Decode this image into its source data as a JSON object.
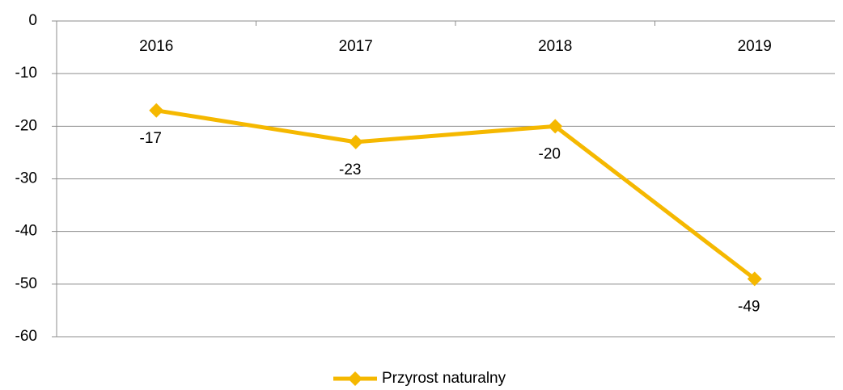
{
  "chart_data": {
    "type": "line",
    "categories": [
      "2016",
      "2017",
      "2018",
      "2019"
    ],
    "series": [
      {
        "name": "Przyrost naturalny",
        "color": "#f5b800",
        "values": [
          -17,
          -23,
          -20,
          -49
        ]
      }
    ],
    "ylim": [
      -60,
      0
    ],
    "yticks": [
      0,
      -10,
      -20,
      -30,
      -40,
      -50,
      -60
    ],
    "grid": true,
    "legend": "bottom",
    "data_labels": true
  }
}
